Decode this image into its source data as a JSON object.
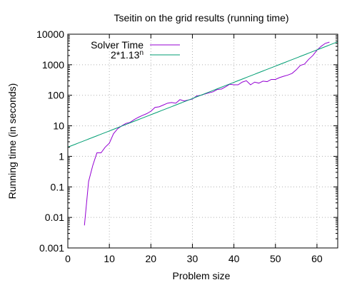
{
  "chart_data": {
    "type": "line",
    "title": "Tseitin on the grid results (running time)",
    "xlabel": "Problem size",
    "ylabel": "Running time (in seconds)",
    "xlim": [
      0,
      65
    ],
    "ylim": [
      0.001,
      10000
    ],
    "yscale": "log",
    "grid": true,
    "legend_position": "top-left",
    "x_ticks": [
      0,
      10,
      20,
      30,
      40,
      50,
      60
    ],
    "x_tick_labels": [
      "0",
      "10",
      "20",
      "30",
      "40",
      "50",
      "60"
    ],
    "y_ticks": [
      0.001,
      0.01,
      0.1,
      1,
      10,
      100,
      1000,
      10000
    ],
    "y_tick_labels": [
      "0.001",
      "0.01",
      "0.1",
      "1",
      "10",
      "100",
      "1000",
      "10000"
    ],
    "series": [
      {
        "name": "Solver Time",
        "color": "#9400d3",
        "x": [
          4,
          5,
          6,
          7,
          8,
          9,
          10,
          11,
          12,
          13,
          14,
          15,
          16,
          17,
          18,
          19,
          20,
          21,
          22,
          23,
          24,
          25,
          26,
          27,
          28,
          29,
          30,
          31,
          32,
          33,
          34,
          35,
          36,
          37,
          38,
          39,
          40,
          41,
          42,
          43,
          44,
          45,
          46,
          47,
          48,
          49,
          50,
          51,
          52,
          53,
          54,
          55,
          56,
          57,
          58,
          59,
          60,
          61,
          62,
          63
        ],
        "y": [
          0.0055,
          0.15,
          0.5,
          1.3,
          1.3,
          2.0,
          2.7,
          5.5,
          8,
          10,
          12,
          13,
          16,
          19,
          22,
          25,
          30,
          40,
          42,
          48,
          55,
          58,
          55,
          72,
          65,
          70,
          75,
          95,
          100,
          110,
          120,
          130,
          155,
          160,
          190,
          230,
          220,
          220,
          270,
          300,
          220,
          270,
          250,
          290,
          280,
          330,
          330,
          380,
          420,
          460,
          520,
          680,
          950,
          1050,
          1500,
          2000,
          3000,
          4000,
          5000,
          5500
        ]
      },
      {
        "name": "2*1.13^n",
        "color": "#009e73",
        "function": {
          "base": 1.13,
          "coefficient": 2
        }
      }
    ]
  },
  "legend": {
    "solver_label": "Solver Time",
    "fit_label_prefix": "2*1.13",
    "fit_label_superscript": "n"
  }
}
